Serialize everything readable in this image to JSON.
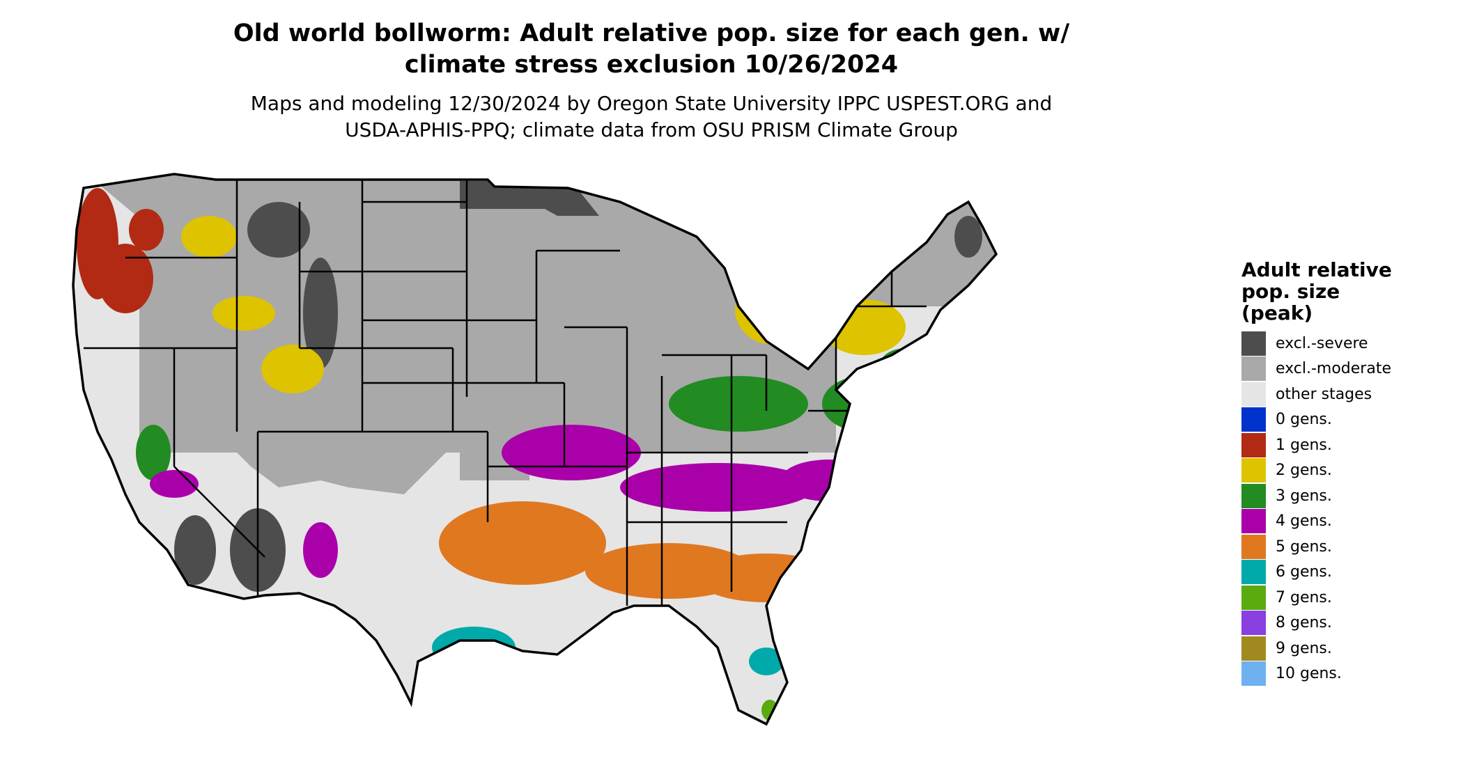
{
  "title": {
    "line1": "Old world bollworm: Adult relative pop. size for each gen. w/",
    "line2": "climate stress exclusion 10/26/2024"
  },
  "subtitle": {
    "line1": "Maps and modeling 12/30/2024 by Oregon State University IPPC USPEST.ORG and",
    "line2": "USDA-APHIS-PPQ; climate data from OSU PRISM Climate Group"
  },
  "legend": {
    "title_lines": [
      "Adult relative",
      "pop. size",
      "(peak)"
    ],
    "items": [
      {
        "label": "excl.-severe",
        "color": "#4d4d4d"
      },
      {
        "label": "excl.-moderate",
        "color": "#a9a9a9"
      },
      {
        "label": "other stages",
        "color": "#e5e5e5"
      },
      {
        "label": "0 gens.",
        "color": "#0033cc"
      },
      {
        "label": "1 gens.",
        "color": "#b22a14"
      },
      {
        "label": "2 gens.",
        "color": "#ddc300"
      },
      {
        "label": "3 gens.",
        "color": "#228b22"
      },
      {
        "label": "4 gens.",
        "color": "#aa00aa"
      },
      {
        "label": "5 gens.",
        "color": "#e07820"
      },
      {
        "label": "6 gens.",
        "color": "#00aaaa"
      },
      {
        "label": "7 gens.",
        "color": "#5aaa10"
      },
      {
        "label": "8 gens.",
        "color": "#8a3fe0"
      },
      {
        "label": "9 gens.",
        "color": "#a08a20"
      },
      {
        "label": "10 gens.",
        "color": "#6fb0f0"
      }
    ]
  }
}
